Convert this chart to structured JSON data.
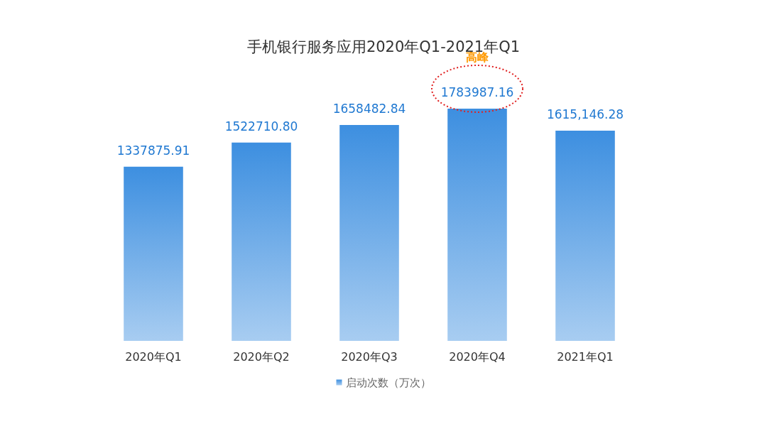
{
  "chart_data": {
    "type": "bar",
    "title": "手机银行服务应用2020年Q1-2021年Q1",
    "categories": [
      "2020年Q1",
      "2020年Q2",
      "2020年Q3",
      "2020年Q4",
      "2021年Q1"
    ],
    "series": [
      {
        "name": "启动次数（万次）",
        "color": "#3d8fe0",
        "values": [
          1337875.91,
          1522710.8,
          1658482.84,
          1783987.16,
          1615146.28
        ],
        "value_labels": [
          "1337875.91",
          "1522710.80",
          "1658482.84",
          "1783987.16",
          "1615,146.28"
        ]
      }
    ],
    "annotations": [
      "高峰"
    ],
    "legend": "bottom",
    "grid": false
  }
}
